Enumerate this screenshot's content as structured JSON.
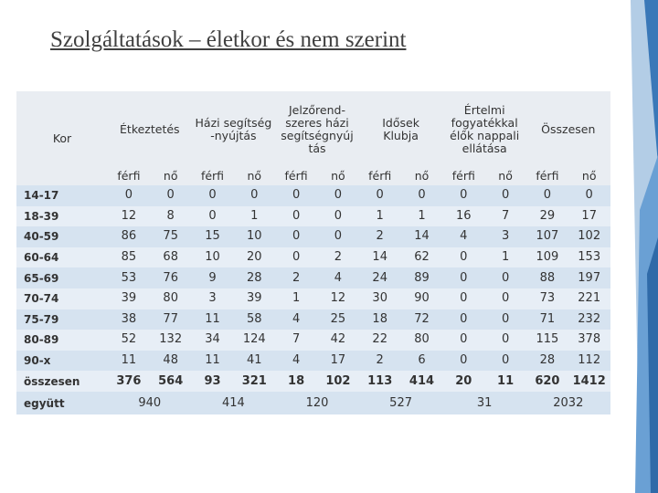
{
  "title": "Szolgáltatások – életkor és nem szerint",
  "table": {
    "corner": "Kor",
    "groups": [
      [
        "Étkeztetés"
      ],
      [
        "Házi segítség",
        "-nyújtás"
      ],
      [
        "Jelzőrend-",
        "szeres házi",
        "segítségnyúj",
        "tás"
      ],
      [
        "Idősek",
        "Klubja"
      ],
      [
        "Értelmi",
        "fogyatékkal",
        "élők nappali",
        "ellátása"
      ],
      [
        "Összesen"
      ]
    ],
    "sub": [
      "férfi",
      "nő",
      "férfi",
      "nő",
      "férfi",
      "nő",
      "férfi",
      "nő",
      "férfi",
      "nő",
      "férfi",
      "nő"
    ],
    "rows": [
      {
        "label": "14-17",
        "cells": [
          0,
          0,
          0,
          0,
          0,
          0,
          0,
          0,
          0,
          0,
          0,
          0
        ]
      },
      {
        "label": "18-39",
        "cells": [
          12,
          8,
          0,
          1,
          0,
          0,
          1,
          1,
          16,
          7,
          29,
          17
        ]
      },
      {
        "label": "40-59",
        "cells": [
          86,
          75,
          15,
          10,
          0,
          0,
          2,
          14,
          4,
          3,
          107,
          102
        ]
      },
      {
        "label": "60-64",
        "cells": [
          85,
          68,
          10,
          20,
          0,
          2,
          14,
          62,
          0,
          1,
          109,
          153
        ]
      },
      {
        "label": "65-69",
        "cells": [
          53,
          76,
          9,
          28,
          2,
          4,
          24,
          89,
          0,
          0,
          88,
          197
        ]
      },
      {
        "label": "70-74",
        "cells": [
          39,
          80,
          3,
          39,
          1,
          12,
          30,
          90,
          0,
          0,
          73,
          221
        ]
      },
      {
        "label": "75-79",
        "cells": [
          38,
          77,
          11,
          58,
          4,
          25,
          18,
          72,
          0,
          0,
          71,
          232
        ]
      },
      {
        "label": "80-89",
        "cells": [
          52,
          132,
          34,
          124,
          7,
          42,
          22,
          80,
          0,
          0,
          115,
          378
        ]
      },
      {
        "label": "90-x",
        "cells": [
          11,
          48,
          11,
          41,
          4,
          17,
          2,
          6,
          0,
          0,
          28,
          112
        ]
      },
      {
        "label": "összesen",
        "cells": [
          376,
          564,
          93,
          321,
          18,
          102,
          113,
          414,
          20,
          11,
          620,
          1412
        ]
      }
    ],
    "total": {
      "label": "együtt",
      "cells": [
        940,
        414,
        120,
        527,
        31,
        2032
      ]
    }
  }
}
